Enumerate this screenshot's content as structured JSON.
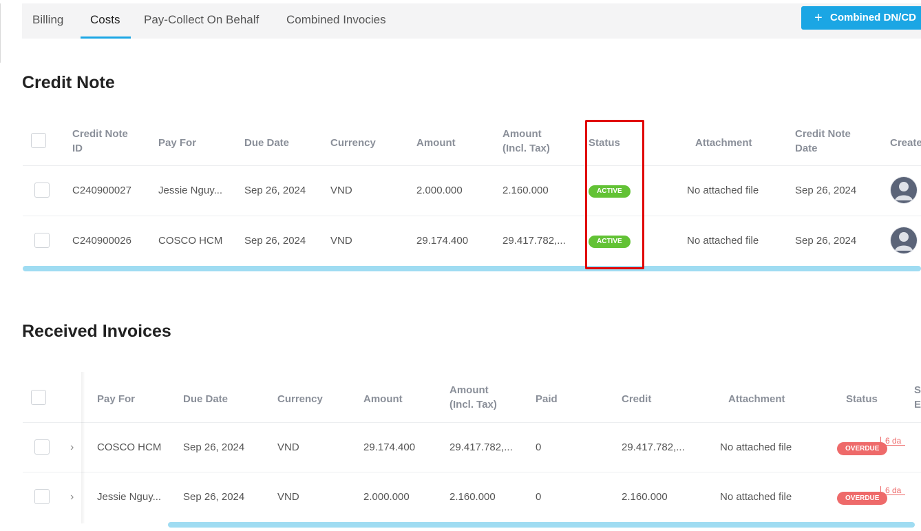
{
  "tabs": [
    {
      "label": "Billing"
    },
    {
      "label": "Costs"
    },
    {
      "label": "Pay-Collect On Behalf"
    },
    {
      "label": "Combined Invocies"
    }
  ],
  "actions": {
    "combined_label": "Combined DN/CD",
    "plus": "+"
  },
  "credit_note": {
    "title": "Credit Note",
    "headers": {
      "id": "Credit Note\nID",
      "pay_for": "Pay For",
      "due_date": "Due Date",
      "currency": "Currency",
      "amount": "Amount",
      "amount_tax": "Amount\n(Incl. Tax)",
      "status": "Status",
      "attachment": "Attachment",
      "date": "Credit Note\nDate",
      "created": "Create"
    },
    "rows": [
      {
        "id": "C240900027",
        "pay_for": "Jessie Nguy...",
        "due_date": "Sep 26, 2024",
        "currency": "VND",
        "amount": "2.000.000",
        "amount_tax": "2.160.000",
        "status": "ACTIVE",
        "attachment": "No attached file",
        "date": "Sep 26, 2024"
      },
      {
        "id": "C240900026",
        "pay_for": "COSCO HCM",
        "due_date": "Sep 26, 2024",
        "currency": "VND",
        "amount": "29.174.400",
        "amount_tax": "29.417.782,...",
        "status": "ACTIVE",
        "attachment": "No attached file",
        "date": "Sep 26, 2024"
      }
    ]
  },
  "received_invoices": {
    "title": "Received Invoices",
    "headers": {
      "pay_for": "Pay For",
      "due_date": "Due Date",
      "currency": "Currency",
      "amount": "Amount",
      "amount_tax": "Amount\n(Incl. Tax)",
      "paid": "Paid",
      "credit": "Credit",
      "attachment": "Attachment",
      "status": "Status",
      "extra": "S\nE"
    },
    "rows": [
      {
        "pay_for": "COSCO HCM",
        "due_date": "Sep 26, 2024",
        "currency": "VND",
        "amount": "29.174.400",
        "amount_tax": "29.417.782,...",
        "paid": "0",
        "credit": "29.417.782,...",
        "attachment": "No attached file",
        "status": "OVERDUE",
        "days": "6 da"
      },
      {
        "pay_for": "Jessie Nguy...",
        "due_date": "Sep 26, 2024",
        "currency": "VND",
        "amount": "2.000.000",
        "amount_tax": "2.160.000",
        "paid": "0",
        "credit": "2.160.000",
        "attachment": "No attached file",
        "status": "OVERDUE",
        "days": "6 da"
      }
    ]
  },
  "colors": {
    "accent": "#1ba6e4",
    "active": "#62c235",
    "overdue": "#ee6a6a",
    "highlight": "#e00000"
  }
}
